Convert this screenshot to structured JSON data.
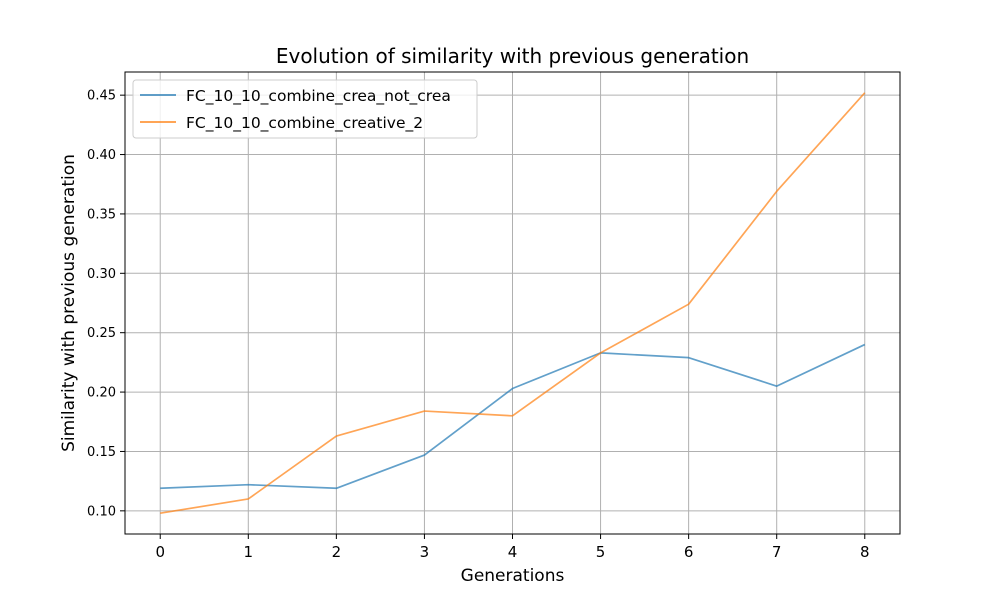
{
  "chart_data": {
    "type": "line",
    "title": "Evolution of similarity with previous generation",
    "xlabel": "Generations",
    "ylabel": "Similarity with previous generation",
    "x": [
      0,
      1,
      2,
      3,
      4,
      5,
      6,
      7,
      8
    ],
    "x_ticks": [
      "0",
      "1",
      "2",
      "3",
      "4",
      "5",
      "6",
      "7",
      "8"
    ],
    "xlim": [
      -0.4,
      8.4
    ],
    "ylim": [
      0.0805,
      0.4695
    ],
    "y_ticks": [
      "0.10",
      "0.15",
      "0.20",
      "0.25",
      "0.30",
      "0.35",
      "0.40",
      "0.45"
    ],
    "grid": true,
    "legend_position": "top-left",
    "series": [
      {
        "name": "FC_10_10_combine_crea_not_crea",
        "color": "#1f77b4",
        "values": [
          0.119,
          0.122,
          0.119,
          0.147,
          0.203,
          0.233,
          0.229,
          0.205,
          0.24
        ]
      },
      {
        "name": "FC_10_10_combine_creative_2",
        "color": "#ff7f0e",
        "values": [
          0.098,
          0.11,
          0.163,
          0.184,
          0.18,
          0.233,
          0.274,
          0.369,
          0.452
        ]
      }
    ]
  }
}
